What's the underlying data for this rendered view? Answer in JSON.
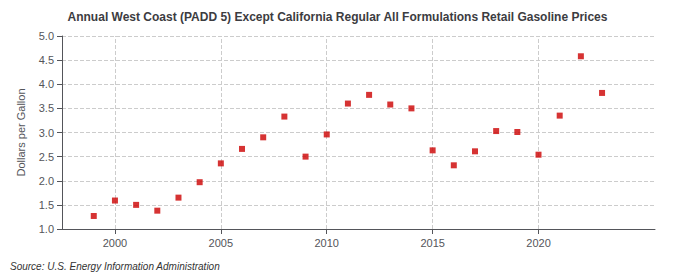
{
  "chart_data": {
    "type": "scatter",
    "title": "Annual West Coast (PADD 5) Except California Regular All Formulations Retail Gasoline Prices",
    "ylabel": "Dollars per Gallon",
    "annotation": "Source: U.S. Energy Information Administration",
    "x": [
      1999,
      2000,
      2001,
      2002,
      2003,
      2004,
      2005,
      2006,
      2007,
      2008,
      2009,
      2010,
      2011,
      2012,
      2013,
      2014,
      2015,
      2016,
      2017,
      2018,
      2019,
      2020,
      2021,
      2022,
      2023
    ],
    "values": [
      1.27,
      1.59,
      1.5,
      1.38,
      1.65,
      1.97,
      2.36,
      2.66,
      2.9,
      3.33,
      2.5,
      2.96,
      3.6,
      3.78,
      3.58,
      3.5,
      2.63,
      2.32,
      2.61,
      3.03,
      3.01,
      2.54,
      3.35,
      4.58,
      3.82
    ],
    "color": "#cc0000",
    "marker": "square",
    "xlim": [
      1997.5,
      2025.5
    ],
    "xticks": [
      2000,
      2005,
      2010,
      2015,
      2020
    ],
    "ylim": [
      1.0,
      5.0
    ],
    "yticks": [
      {
        "value": 1.0,
        "label": "1.0"
      },
      1.5,
      {
        "value": 2.0,
        "label": "2.0"
      },
      2.5,
      {
        "value": 3.0,
        "label": "3.0"
      },
      3.5,
      {
        "value": 4.0,
        "label": "4.0"
      },
      4.5,
      {
        "value": 5.0,
        "label": "5.0"
      }
    ],
    "grid": true
  }
}
